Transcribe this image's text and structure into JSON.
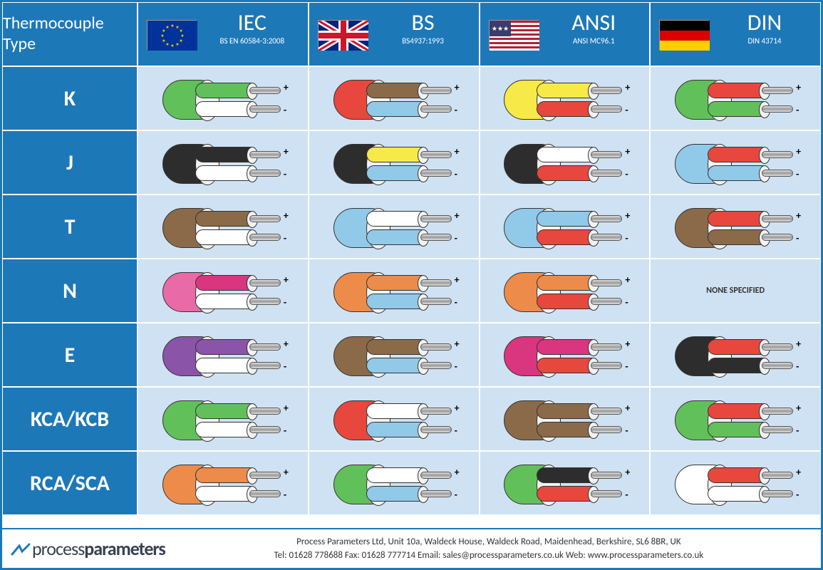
{
  "header": {
    "title": "Thermocouple\nType",
    "standards": [
      {
        "code": "IEC",
        "sub": "BS EN 60584-3:2008",
        "flag": "eu"
      },
      {
        "code": "BS",
        "sub": "BS4937:1993",
        "flag": "uk"
      },
      {
        "code": "ANSI",
        "sub": "ANSI MC96.1",
        "flag": "us"
      },
      {
        "code": "DIN",
        "sub": "DIN 43714",
        "flag": "de"
      }
    ]
  },
  "flags": {
    "eu": {
      "bg": "#003399"
    },
    "uk": {
      "bg": "#00247d"
    },
    "us": {
      "bg": "#3c3b6e"
    },
    "de": {
      "bg": "#000000"
    }
  },
  "colors": {
    "green": "#62c05a",
    "white": "#ffffff",
    "red": "#e8473d",
    "lightblue": "#91c9e8",
    "yellow": "#f7e948",
    "brown": "#8b6a4a",
    "black": "#2d2d2d",
    "blue": "#3a7fc4",
    "orange": "#ed8b4b",
    "pink": "#e86aa6",
    "magenta": "#d9367f",
    "purple": "#8a54a8",
    "darkbrown": "#6b4a30"
  },
  "none_text": "NONE SPECIFIED",
  "rows": [
    {
      "type": "K",
      "cells": [
        {
          "jacket": "green",
          "pos": "green",
          "neg": "white"
        },
        {
          "jacket": "red",
          "pos": "brown",
          "neg": "lightblue"
        },
        {
          "jacket": "yellow",
          "pos": "yellow",
          "neg": "red"
        },
        {
          "jacket": "green",
          "pos": "red",
          "neg": "green"
        }
      ]
    },
    {
      "type": "J",
      "cells": [
        {
          "jacket": "black",
          "pos": "black",
          "neg": "white"
        },
        {
          "jacket": "black",
          "pos": "yellow",
          "neg": "lightblue"
        },
        {
          "jacket": "black",
          "pos": "white",
          "neg": "red"
        },
        {
          "jacket": "lightblue",
          "pos": "red",
          "neg": "lightblue"
        }
      ]
    },
    {
      "type": "T",
      "cells": [
        {
          "jacket": "brown",
          "pos": "brown",
          "neg": "white"
        },
        {
          "jacket": "lightblue",
          "pos": "white",
          "neg": "lightblue"
        },
        {
          "jacket": "lightblue",
          "pos": "lightblue",
          "neg": "red"
        },
        {
          "jacket": "brown",
          "pos": "red",
          "neg": "brown"
        }
      ]
    },
    {
      "type": "N",
      "cells": [
        {
          "jacket": "pink",
          "pos": "magenta",
          "neg": "white"
        },
        {
          "jacket": "orange",
          "pos": "orange",
          "neg": "lightblue"
        },
        {
          "jacket": "orange",
          "pos": "orange",
          "neg": "red"
        },
        {
          "none": true
        }
      ]
    },
    {
      "type": "E",
      "cells": [
        {
          "jacket": "purple",
          "pos": "purple",
          "neg": "white"
        },
        {
          "jacket": "brown",
          "pos": "brown",
          "neg": "lightblue"
        },
        {
          "jacket": "magenta",
          "pos": "magenta",
          "neg": "red"
        },
        {
          "jacket": "black",
          "pos": "red",
          "neg": "black"
        }
      ]
    },
    {
      "type": "KCA/KCB",
      "cells": [
        {
          "jacket": "green",
          "pos": "green",
          "neg": "white"
        },
        {
          "jacket": "red",
          "pos": "white",
          "neg": "lightblue"
        },
        {
          "jacket": "brown",
          "pos": "brown",
          "neg": "brown"
        },
        {
          "jacket": "green",
          "pos": "red",
          "neg": "green"
        }
      ]
    },
    {
      "type": "RCA/SCA",
      "cells": [
        {
          "jacket": "orange",
          "pos": "orange",
          "neg": "white"
        },
        {
          "jacket": "green",
          "pos": "white",
          "neg": "lightblue"
        },
        {
          "jacket": "green",
          "pos": "black",
          "neg": "red"
        },
        {
          "jacket": "white",
          "pos": "red",
          "neg": "white"
        }
      ]
    }
  ],
  "footer": {
    "brand_pre": "process",
    "brand_post": "parameters",
    "line1": "Process Parameters Ltd, Unit 10a, Waldeck House, Waldeck Road, Maidenhead, Berkshire, SL6 8BR, UK",
    "line2": "Tel: 01628 778688 Fax: 01628 777714 Email: sales@processparameters.co.uk        Web: www.processparameters.co.uk"
  }
}
